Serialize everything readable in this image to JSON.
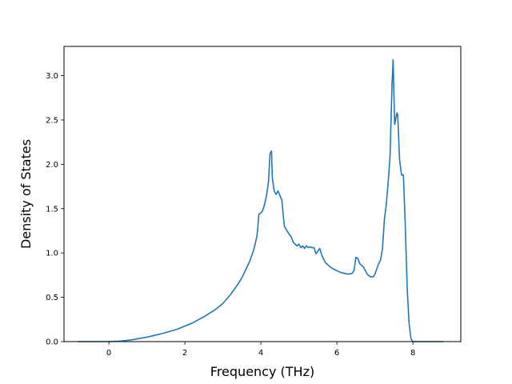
{
  "chart_data": {
    "type": "line",
    "title": "",
    "xlabel": "Frequency (THz)",
    "ylabel": "Density of States",
    "xlim": [
      -1.18,
      9.26
    ],
    "ylim": [
      0,
      3.33
    ],
    "grid": false,
    "xticks": [
      0,
      2,
      4,
      6,
      8
    ],
    "yticks": [
      0.0,
      0.5,
      1.0,
      1.5,
      2.0,
      2.5,
      3.0
    ],
    "xtick_labels": [
      "0",
      "2",
      "4",
      "6",
      "8"
    ],
    "ytick_labels": [
      "0.0",
      "0.5",
      "1.0",
      "1.5",
      "2.0",
      "2.5",
      "3.0"
    ],
    "series": [
      {
        "color": "#1f77b4",
        "x": [
          -0.82,
          -0.5,
          0.0,
          0.3,
          0.6,
          1.0,
          1.4,
          1.8,
          2.2,
          2.5,
          2.8,
          3.0,
          3.2,
          3.4,
          3.5,
          3.6,
          3.7,
          3.8,
          3.85,
          3.9,
          3.95,
          4.0,
          4.05,
          4.1,
          4.15,
          4.2,
          4.24,
          4.28,
          4.3,
          4.35,
          4.4,
          4.45,
          4.5,
          4.55,
          4.6,
          4.62,
          4.7,
          4.8,
          4.85,
          4.9,
          4.95,
          5.0,
          5.05,
          5.1,
          5.15,
          5.2,
          5.25,
          5.3,
          5.35,
          5.4,
          5.45,
          5.5,
          5.55,
          5.6,
          5.65,
          5.7,
          5.8,
          5.9,
          6.0,
          6.1,
          6.2,
          6.3,
          6.4,
          6.45,
          6.5,
          6.55,
          6.6,
          6.65,
          6.7,
          6.75,
          6.8,
          6.85,
          6.9,
          6.95,
          7.0,
          7.05,
          7.1,
          7.15,
          7.2,
          7.25,
          7.3,
          7.35,
          7.4,
          7.45,
          7.48,
          7.5,
          7.52,
          7.55,
          7.58,
          7.6,
          7.65,
          7.7,
          7.75,
          7.8,
          7.85,
          7.9,
          7.95,
          8.0,
          8.05,
          8.5,
          8.8
        ],
        "y": [
          0.0,
          0.0,
          0.0,
          0.005,
          0.02,
          0.05,
          0.09,
          0.14,
          0.21,
          0.28,
          0.36,
          0.43,
          0.53,
          0.65,
          0.72,
          0.81,
          0.9,
          1.02,
          1.1,
          1.2,
          1.44,
          1.45,
          1.48,
          1.55,
          1.65,
          1.8,
          2.12,
          2.15,
          1.85,
          1.7,
          1.66,
          1.7,
          1.65,
          1.6,
          1.38,
          1.3,
          1.24,
          1.18,
          1.12,
          1.1,
          1.08,
          1.1,
          1.06,
          1.08,
          1.05,
          1.08,
          1.06,
          1.07,
          1.06,
          1.06,
          0.99,
          1.02,
          1.05,
          0.98,
          0.93,
          0.89,
          0.85,
          0.82,
          0.8,
          0.78,
          0.77,
          0.76,
          0.77,
          0.8,
          0.95,
          0.94,
          0.88,
          0.86,
          0.84,
          0.8,
          0.76,
          0.74,
          0.73,
          0.73,
          0.76,
          0.82,
          0.88,
          0.92,
          1.05,
          1.38,
          1.55,
          1.8,
          2.1,
          2.9,
          3.18,
          2.8,
          2.45,
          2.52,
          2.58,
          2.56,
          2.05,
          1.88,
          1.88,
          1.3,
          0.6,
          0.2,
          0.03,
          0.0,
          0.0,
          0.0,
          0.0
        ]
      }
    ]
  }
}
